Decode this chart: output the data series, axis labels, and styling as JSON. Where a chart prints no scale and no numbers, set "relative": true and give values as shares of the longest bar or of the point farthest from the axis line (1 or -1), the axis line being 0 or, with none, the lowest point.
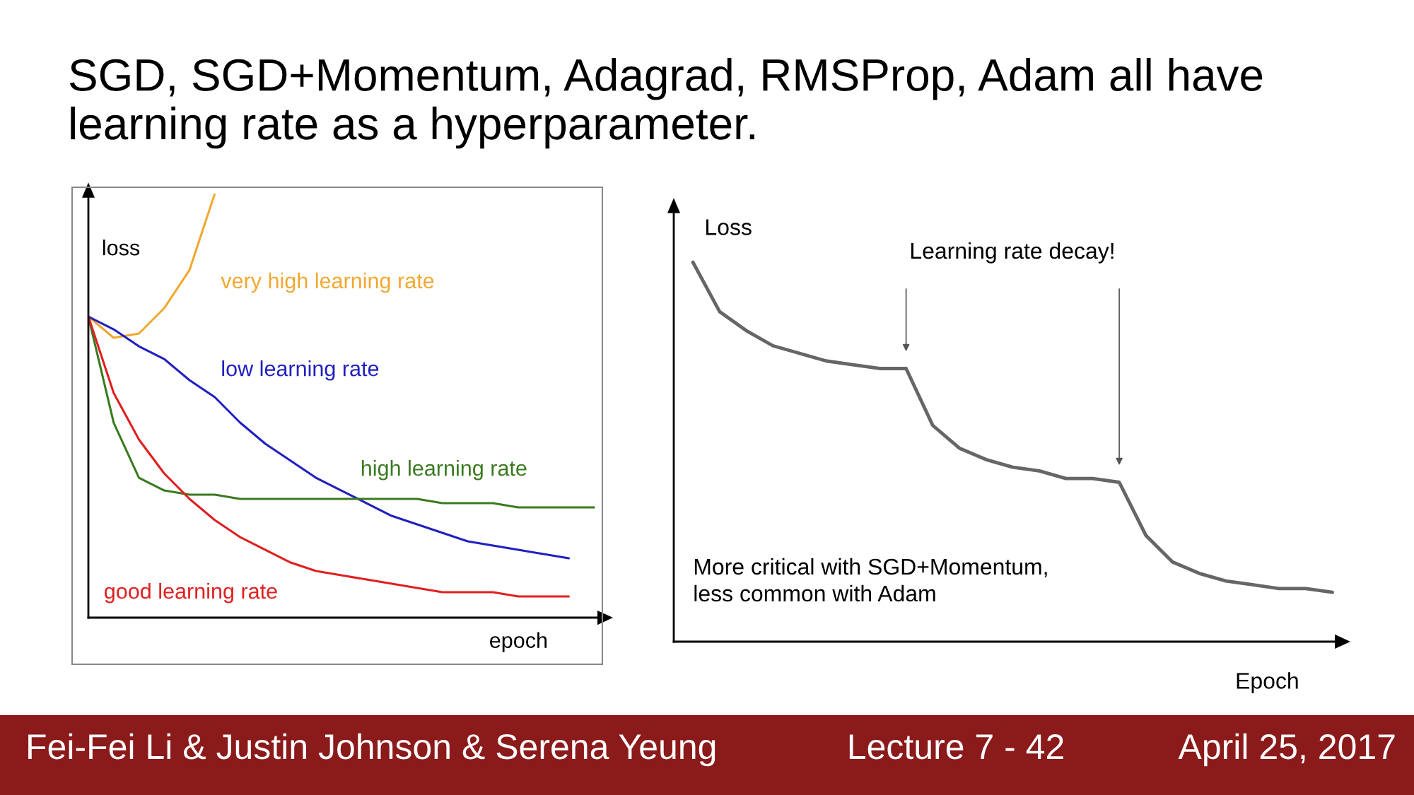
{
  "chart_data": [
    {
      "type": "line",
      "title": "SGD, SGD+Momentum, Adagrad, RMSProp, Adam all have\nlearning rate as a hyperparameter.",
      "relative": true,
      "xlabel": "epoch",
      "ylabel": "loss",
      "categories": [
        null,
        null,
        null,
        null,
        null,
        null,
        null,
        null,
        null,
        null,
        null,
        null,
        null,
        null,
        null,
        null,
        null,
        null,
        null,
        null,
        null
      ],
      "series": [
        {
          "name": "very high learning rate",
          "color": "#f0a830",
          "values": [
            0.71,
            0.66,
            0.67,
            0.73,
            0.82,
            1.0,
            null,
            null,
            null,
            null,
            null,
            null,
            null,
            null,
            null,
            null,
            null,
            null,
            null,
            null,
            null
          ]
        },
        {
          "name": "low learning rate",
          "color": "#2020c0",
          "values": [
            0.71,
            0.68,
            0.64,
            0.61,
            0.56,
            0.52,
            0.46,
            0.41,
            0.37,
            0.33,
            0.3,
            0.27,
            0.24,
            0.22,
            0.2,
            0.18,
            0.17,
            0.16,
            0.15,
            0.14,
            null
          ]
        },
        {
          "name": "high learning rate",
          "color": "#3a7a20",
          "values": [
            0.71,
            0.46,
            0.33,
            0.3,
            0.29,
            0.29,
            0.28,
            0.28,
            0.28,
            0.28,
            0.28,
            0.28,
            0.28,
            0.28,
            0.27,
            0.27,
            0.27,
            0.26,
            0.26,
            0.26,
            0.26
          ]
        },
        {
          "name": "good learning rate",
          "color": "#e02020",
          "values": [
            0.71,
            0.53,
            0.42,
            0.34,
            0.28,
            0.23,
            0.19,
            0.16,
            0.13,
            0.11,
            0.1,
            0.09,
            0.08,
            0.07,
            0.06,
            0.06,
            0.06,
            0.05,
            0.05,
            0.05,
            null
          ]
        }
      ],
      "annotations": [
        "Fei-Fei Li & Justin Johnson & Serena Yeung",
        "Lecture 7 - 42",
        "April 25, 2017"
      ]
    },
    {
      "type": "line",
      "relative": true,
      "xlabel": "Epoch",
      "ylabel": "Loss",
      "categories": [
        null,
        null,
        null,
        null,
        null,
        null,
        null,
        null,
        null,
        null,
        null,
        null,
        null,
        null,
        null,
        null,
        null,
        null,
        null,
        null,
        null,
        null,
        null,
        null,
        null
      ],
      "series": [
        {
          "color": "#666666",
          "values": [
            1.0,
            0.87,
            0.82,
            0.78,
            0.76,
            0.74,
            0.73,
            0.72,
            0.72,
            0.57,
            0.51,
            0.48,
            0.46,
            0.45,
            0.43,
            0.43,
            0.42,
            0.28,
            0.21,
            0.18,
            0.16,
            0.15,
            0.14,
            0.14,
            0.13
          ]
        }
      ],
      "annotations": [
        "Learning rate decay!",
        "More critical with SGD+Momentum,\nless common with Adam"
      ]
    }
  ]
}
